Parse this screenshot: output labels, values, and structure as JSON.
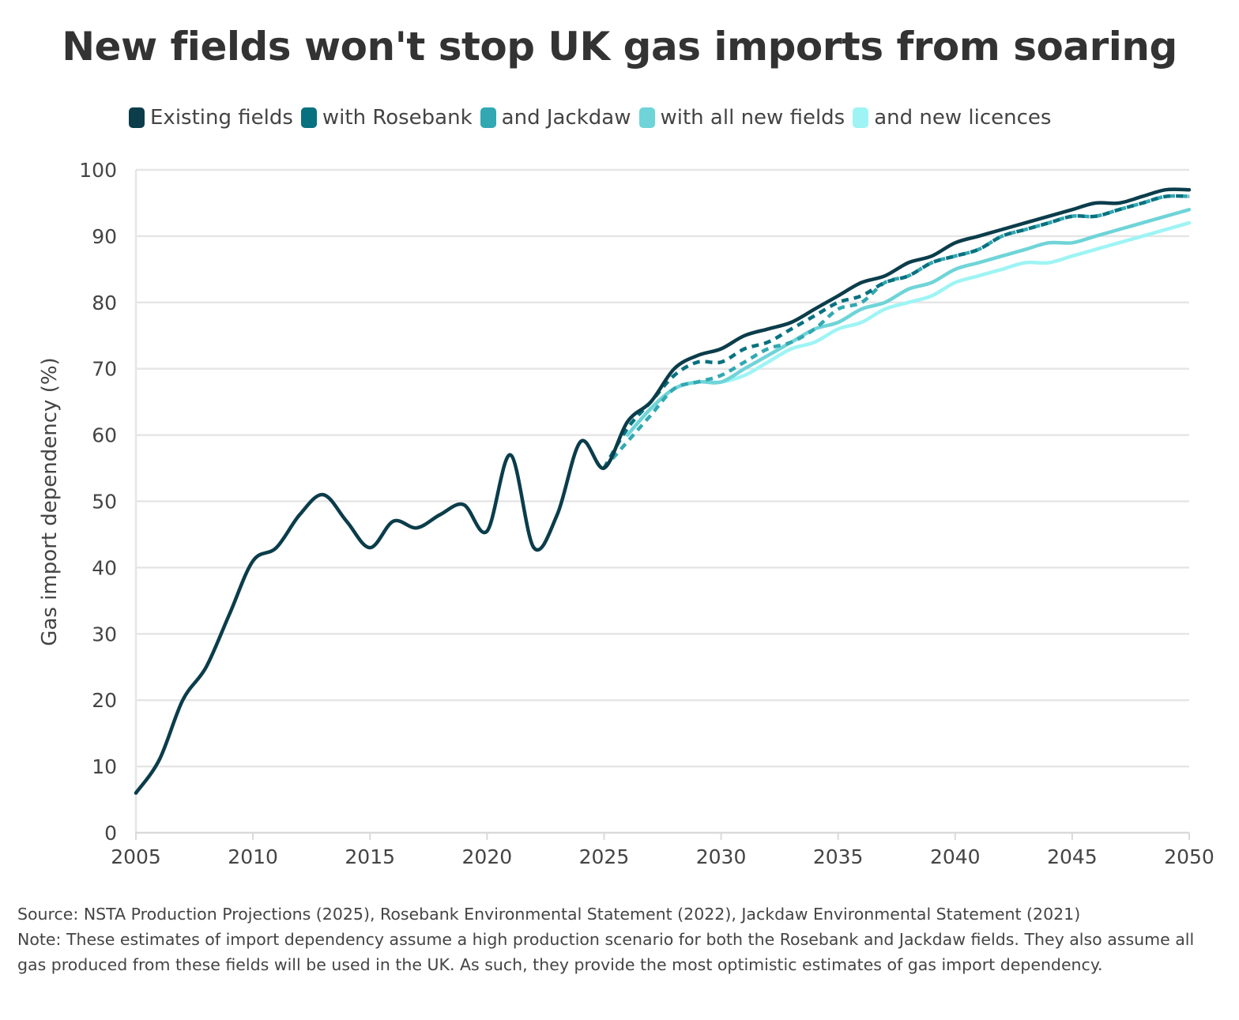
{
  "title": "New fields won't stop UK gas imports from soaring",
  "legend": [
    {
      "label": "Existing fields",
      "color": "#0b3d4b"
    },
    {
      "label": "with Rosebank",
      "color": "#08717f"
    },
    {
      "label": "and Jackdaw",
      "color": "#32a8b2"
    },
    {
      "label": "with all new fields",
      "color": "#6fd4d8"
    },
    {
      "label": "and new licences",
      "color": "#9ef4f4"
    }
  ],
  "footnote": {
    "source": "Source: NSTA Production Projections (2025), Rosebank Environmental Statement (2022), Jackdaw Environmental Statement (2021)",
    "note": "Note: These estimates of import dependency assume a high production scenario for both the Rosebank and Jackdaw fields. They also assume all gas produced from these fields will be used in the UK. As such, they provide the most optimistic estimates of gas import dependency."
  },
  "chart_data": {
    "type": "line",
    "ylabel": "Gas import dependency (%)",
    "xlabel": "",
    "xlim": [
      2005,
      2050
    ],
    "ylim": [
      0,
      100
    ],
    "xticks": [
      2005,
      2010,
      2015,
      2020,
      2025,
      2030,
      2035,
      2040,
      2045,
      2050
    ],
    "yticks": [
      0,
      10,
      20,
      30,
      40,
      50,
      60,
      70,
      80,
      90,
      100
    ],
    "grid": "horizontal",
    "legend_position": "top",
    "series": [
      {
        "name": "Existing fields",
        "color": "#0b3d4b",
        "dash": false,
        "x": [
          2005,
          2006,
          2007,
          2008,
          2009,
          2010,
          2011,
          2012,
          2013,
          2014,
          2015,
          2016,
          2017,
          2018,
          2019,
          2020,
          2021,
          2022,
          2023,
          2024,
          2025,
          2026,
          2027,
          2028,
          2029,
          2030,
          2031,
          2032,
          2033,
          2034,
          2035,
          2036,
          2037,
          2038,
          2039,
          2040,
          2041,
          2042,
          2043,
          2044,
          2045,
          2046,
          2047,
          2048,
          2049,
          2050
        ],
        "y": [
          6,
          11,
          20,
          25,
          33,
          41,
          43,
          48,
          51,
          47,
          43,
          47,
          46,
          48,
          49.5,
          45.5,
          57,
          43,
          48,
          59,
          55,
          62,
          65,
          70,
          72,
          73,
          75,
          76,
          77,
          79,
          81,
          83,
          84,
          86,
          87,
          89,
          90,
          91,
          92,
          93,
          94,
          95,
          95,
          96,
          97,
          97
        ]
      },
      {
        "name": "with Rosebank",
        "color": "#08717f",
        "dash": true,
        "x": [
          2025,
          2026,
          2027,
          2028,
          2029,
          2030,
          2031,
          2032,
          2033,
          2034,
          2035,
          2036,
          2037,
          2038,
          2039,
          2040,
          2041,
          2042,
          2043,
          2044,
          2045,
          2046,
          2047,
          2048,
          2049,
          2050
        ],
        "y": [
          55,
          61,
          65,
          69,
          71,
          71,
          73,
          74,
          76,
          78,
          80,
          81,
          83,
          84,
          86,
          87,
          88,
          90,
          91,
          92,
          93,
          93,
          94,
          95,
          96,
          96
        ]
      },
      {
        "name": "and Jackdaw",
        "color": "#32a8b2",
        "dash": true,
        "x": [
          2025,
          2026,
          2027,
          2028,
          2029,
          2030,
          2031,
          2032,
          2033,
          2034,
          2035,
          2036,
          2037,
          2038,
          2039,
          2040,
          2041,
          2042,
          2043,
          2044,
          2045,
          2046,
          2047,
          2048,
          2049,
          2050
        ],
        "y": [
          55,
          59,
          63,
          67,
          68,
          69,
          71,
          73,
          74,
          76,
          79,
          80,
          83,
          84,
          86,
          87,
          88,
          90,
          91,
          92,
          93,
          93,
          94,
          95,
          96,
          96
        ]
      },
      {
        "name": "with all new fields",
        "color": "#6fd4d8",
        "dash": false,
        "x": [
          2026,
          2027,
          2028,
          2029,
          2030,
          2031,
          2032,
          2033,
          2034,
          2035,
          2036,
          2037,
          2038,
          2039,
          2040,
          2041,
          2042,
          2043,
          2044,
          2045,
          2046,
          2047,
          2048,
          2049,
          2050
        ],
        "y": [
          60,
          64,
          67,
          68,
          68,
          70,
          72,
          74,
          76,
          77,
          79,
          80,
          82,
          83,
          85,
          86,
          87,
          88,
          89,
          89,
          90,
          91,
          92,
          93,
          94
        ]
      },
      {
        "name": "and new licences",
        "color": "#9ef4f4",
        "dash": false,
        "x": [
          2026,
          2027,
          2028,
          2029,
          2030,
          2031,
          2032,
          2033,
          2034,
          2035,
          2036,
          2037,
          2038,
          2039,
          2040,
          2041,
          2042,
          2043,
          2044,
          2045,
          2046,
          2047,
          2048,
          2049,
          2050
        ],
        "y": [
          60,
          64,
          67,
          68,
          68,
          69,
          71,
          73,
          74,
          76,
          77,
          79,
          80,
          81,
          83,
          84,
          85,
          86,
          86,
          87,
          88,
          89,
          90,
          91,
          92
        ]
      }
    ]
  }
}
